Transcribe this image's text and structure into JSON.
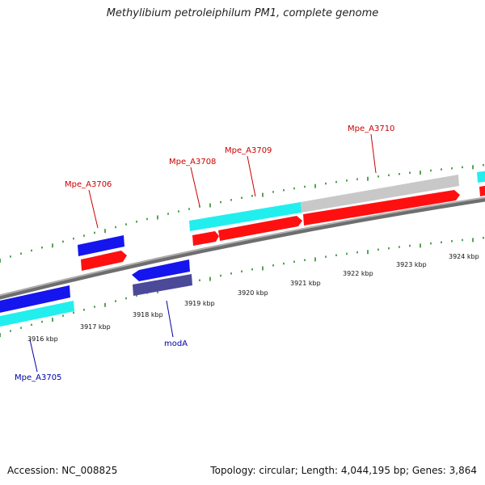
{
  "title": "Methylibium petroleiphilum PM1, complete genome",
  "footer": {
    "accession": "Accession: NC_008825",
    "stats": "Topology: circular; Length: 4,044,195 bp; Genes: 3,864"
  },
  "colors": {
    "background": "#ffffff",
    "backbone": "#8a8a8a",
    "tick": "#2e8b2e",
    "red_gene": "#ff1010",
    "blue_gene": "#1515ee",
    "cyan_gene": "#22eeee",
    "gray_gene": "#c8c8c8",
    "navy_gene": "#4a4a99",
    "label_red": "#cc0000",
    "label_blue": "#0000aa"
  },
  "scale_labels": [
    "3916 kbp",
    "3917 kbp",
    "3918 kbp",
    "3919 kbp",
    "3920 kbp",
    "3921 kbp",
    "3922 kbp",
    "3923 kbp",
    "3924 kbp"
  ],
  "gene_labels": [
    {
      "id": "mpe-a3705",
      "text": "Mpe_A3705",
      "color": "label_blue"
    },
    {
      "id": "moda",
      "text": "modA",
      "color": "label_blue"
    },
    {
      "id": "mpe-a3706",
      "text": "Mpe_A3706",
      "color": "label_red"
    },
    {
      "id": "mpe-a3708",
      "text": "Mpe_A3708",
      "color": "label_red"
    },
    {
      "id": "mpe-a3709",
      "text": "Mpe_A3709",
      "color": "label_red"
    },
    {
      "id": "mpe-a3710",
      "text": "Mpe_A3710",
      "color": "label_red"
    }
  ],
  "genes": [
    {
      "id": "blue-left-upper",
      "color": "blue_gene"
    },
    {
      "id": "cyan-left-lower",
      "color": "cyan_gene"
    },
    {
      "id": "blue-3706",
      "color": "blue_gene"
    },
    {
      "id": "red-3706",
      "color": "red_gene"
    },
    {
      "id": "blue-moda",
      "color": "blue_gene"
    },
    {
      "id": "navy-moda",
      "color": "navy_gene"
    },
    {
      "id": "cyan-3708-3709",
      "color": "cyan_gene"
    },
    {
      "id": "red-3708",
      "color": "red_gene"
    },
    {
      "id": "red-3709",
      "color": "red_gene"
    },
    {
      "id": "gray-3710",
      "color": "gray_gene"
    },
    {
      "id": "red-3710",
      "color": "red_gene"
    },
    {
      "id": "cyan-right-edge",
      "color": "cyan_gene"
    },
    {
      "id": "red-right-edge",
      "color": "red_gene"
    }
  ]
}
